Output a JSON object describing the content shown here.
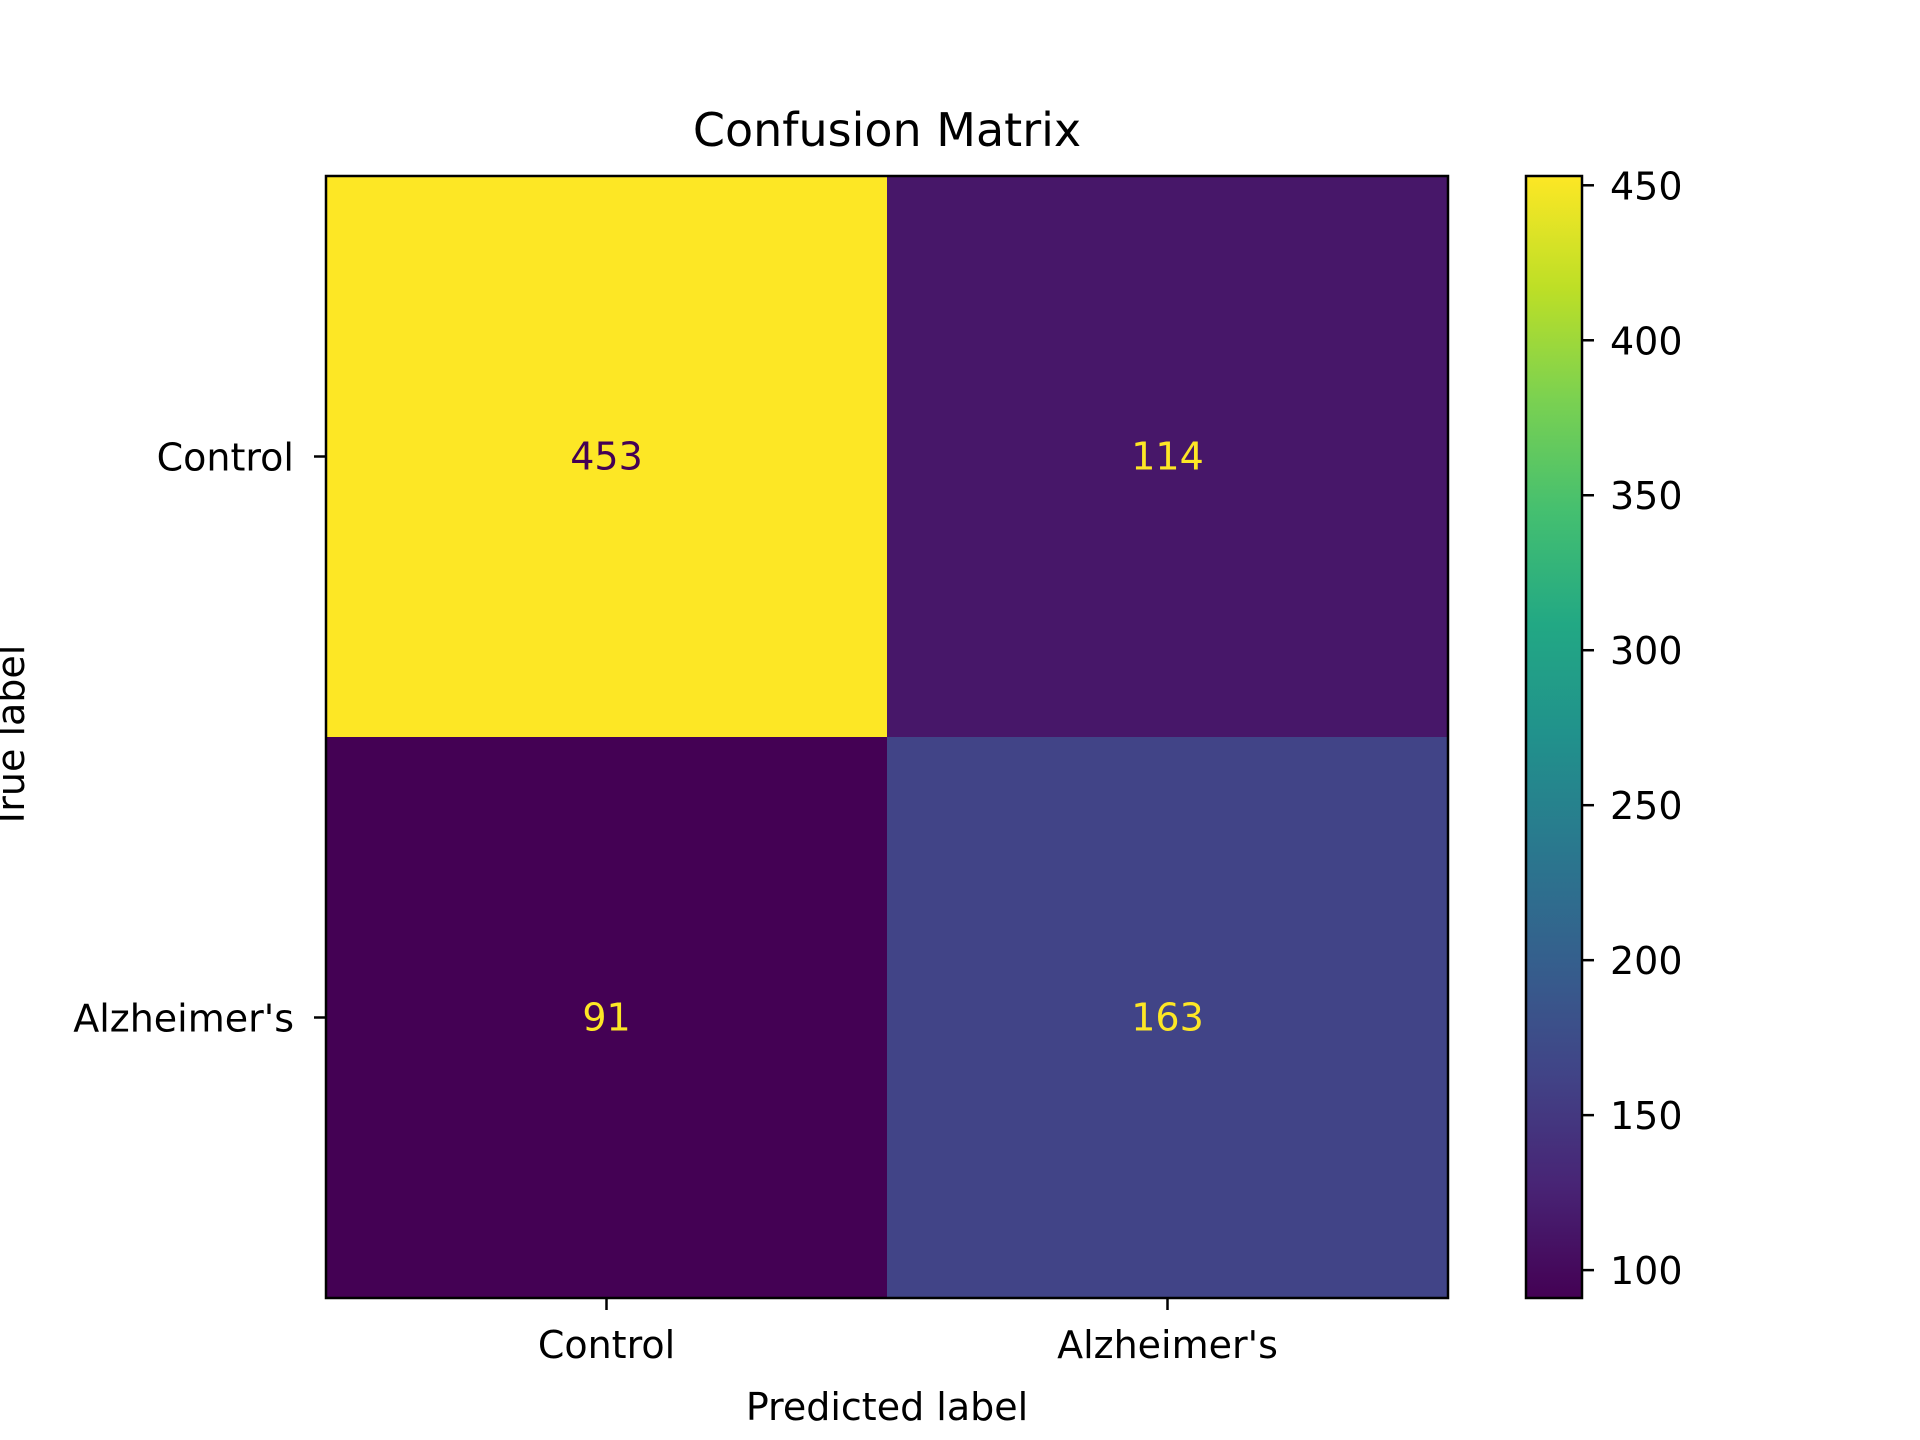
{
  "chart_data": {
    "type": "heatmap",
    "title": "Confusion Matrix",
    "xlabel": "Predicted label",
    "ylabel": "True label",
    "x_categories": [
      "Control",
      "Alzheimer's"
    ],
    "y_categories": [
      "Control",
      "Alzheimer's"
    ],
    "values": [
      [
        453,
        114
      ],
      [
        91,
        163
      ]
    ],
    "colormap": "viridis",
    "colorbar": {
      "range": [
        91,
        453
      ],
      "ticks": [
        "100",
        "150",
        "200",
        "250",
        "300",
        "350",
        "400",
        "450"
      ]
    },
    "grid": false,
    "cell_text_colors": {
      "on_dark": "#fde725",
      "on_light": "#440154"
    }
  }
}
